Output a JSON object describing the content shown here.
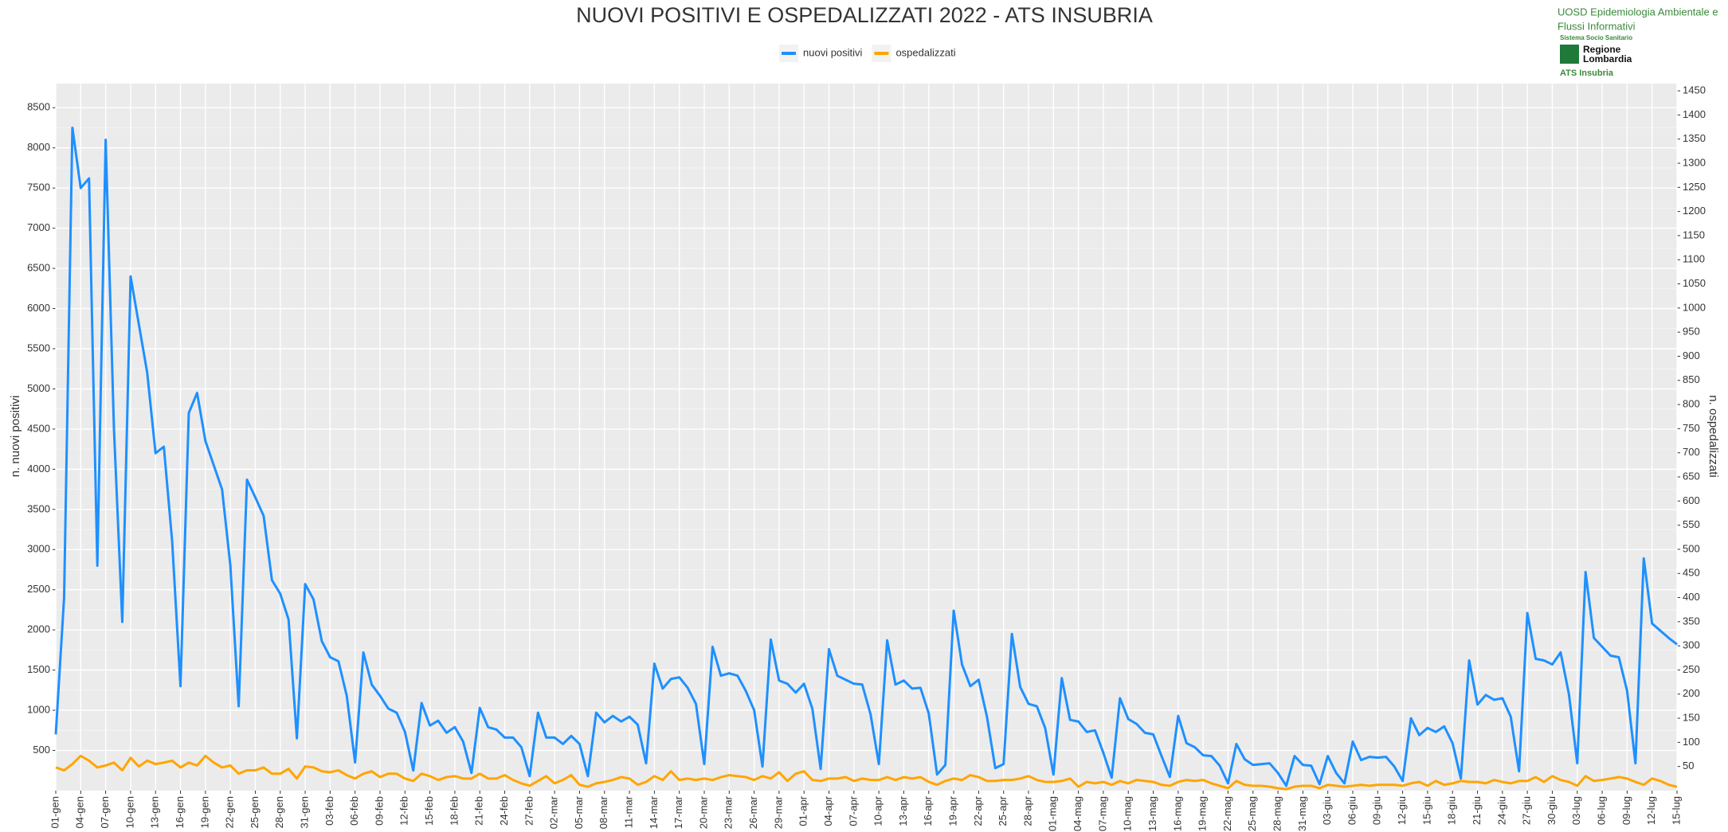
{
  "chart_data": {
    "type": "line",
    "title": "NUOVI POSITIVI E OSPEDALIZZATI 2022 - ATS INSUBRIA",
    "y_label": "n. nuovi positivi",
    "y2_label": "n. ospedalizzati",
    "legend": "top",
    "grid": true,
    "categories": [
      "01-gen",
      null,
      null,
      "04-gen",
      null,
      null,
      "07-gen",
      null,
      null,
      "10-gen",
      null,
      null,
      "13-gen",
      null,
      null,
      "16-gen",
      null,
      null,
      "19-gen",
      null,
      null,
      "22-gen",
      null,
      null,
      "25-gen",
      null,
      null,
      "28-gen",
      null,
      null,
      "31-gen",
      null,
      null,
      "03-feb",
      null,
      null,
      "06-feb",
      null,
      null,
      "09-feb",
      null,
      null,
      "12-feb",
      null,
      null,
      "15-feb",
      null,
      null,
      "18-feb",
      null,
      null,
      "21-feb",
      null,
      null,
      "24-feb",
      null,
      null,
      "27-feb",
      null,
      null,
      "02-mar",
      null,
      null,
      "05-mar",
      null,
      null,
      "08-mar",
      null,
      null,
      "11-mar",
      null,
      null,
      "14-mar",
      null,
      null,
      "17-mar",
      null,
      null,
      "20-mar",
      null,
      null,
      "23-mar",
      null,
      null,
      "26-mar",
      null,
      null,
      "29-mar",
      null,
      null,
      "01-apr",
      null,
      null,
      "04-apr",
      null,
      null,
      "07-apr",
      null,
      null,
      "10-apr",
      null,
      null,
      "13-apr",
      null,
      null,
      "16-apr",
      null,
      null,
      "19-apr",
      null,
      null,
      "22-apr",
      null,
      null,
      "25-apr",
      null,
      null,
      "28-apr",
      null,
      null,
      "01-mag",
      null,
      null,
      "04-mag",
      null,
      null,
      "07-mag",
      null,
      null,
      "10-mag",
      null,
      null,
      "13-mag",
      null,
      null,
      "16-mag",
      null,
      null,
      "19-mag",
      null,
      null,
      "22-mag",
      null,
      null,
      "25-mag",
      null,
      null,
      "28-mag",
      null,
      null,
      "31-mag",
      null,
      null,
      "03-giu",
      null,
      null,
      "06-giu",
      null,
      null,
      "09-giu",
      null,
      null,
      "12-giu",
      null,
      null,
      "15-giu",
      null,
      null,
      "18-giu",
      null,
      null,
      "21-giu",
      null,
      null,
      "24-giu",
      null,
      null,
      "27-giu",
      null,
      null,
      "30-giu",
      null,
      null,
      "03-lug",
      null,
      null,
      "06-lug",
      null,
      null,
      "09-lug",
      null,
      null,
      "12-lug",
      null,
      null,
      "15-lug"
    ],
    "series": [
      {
        "name": "nuovi positivi",
        "color": "#1e90ff",
        "values": [
          700,
          2400,
          8250,
          7500,
          7620,
          2800,
          8100,
          4500,
          2100,
          6400,
          5800,
          5200,
          4200,
          4280,
          3100,
          1300,
          4700,
          4950,
          4350,
          4050,
          3750,
          2800,
          1050,
          3870,
          3650,
          3420,
          2620,
          2450,
          2130,
          650,
          2570,
          2380,
          1860,
          1660,
          1610,
          1180,
          350,
          1720,
          1320,
          1180,
          1020,
          970,
          730,
          250,
          1090,
          810,
          870,
          720,
          790,
          610,
          220,
          1030,
          790,
          760,
          660,
          660,
          540,
          180,
          970,
          660,
          660,
          580,
          680,
          580,
          180,
          970,
          850,
          930,
          860,
          920,
          820,
          340,
          1580,
          1270,
          1390,
          1410,
          1280,
          1080,
          330,
          1790,
          1430,
          1460,
          1430,
          1240,
          1000,
          300,
          1880,
          1370,
          1330,
          1220,
          1330,
          1020,
          270,
          1760,
          1430,
          1380,
          1330,
          1320,
          950,
          330,
          1870,
          1320,
          1370,
          1270,
          1280,
          960,
          200,
          320,
          2240,
          1570,
          1300,
          1380,
          920,
          280,
          330,
          1950,
          1290,
          1080,
          1050,
          780,
          200,
          1400,
          880,
          860,
          730,
          750,
          470,
          160,
          1150,
          890,
          830,
          720,
          700,
          430,
          170,
          930,
          590,
          540,
          440,
          430,
          310,
          90,
          580,
          390,
          320,
          330,
          340,
          220,
          60,
          430,
          320,
          310,
          80,
          430,
          220,
          90,
          610,
          380,
          420,
          410,
          420,
          300,
          120,
          900,
          690,
          780,
          730,
          800,
          590,
          150,
          1620,
          1070,
          1190,
          1130,
          1150,
          920,
          240,
          2210,
          1640,
          1620,
          1570,
          1720,
          1200,
          340,
          2720,
          1900,
          1790,
          1680,
          1660,
          1240,
          340,
          2890,
          2080,
          1990,
          1900,
          1820
        ]
      },
      {
        "name": "ospedalizzati",
        "color": "#ffa500",
        "axis": "y2",
        "values": [
          48,
          42,
          55,
          72,
          62,
          48,
          52,
          58,
          42,
          68,
          50,
          62,
          55,
          58,
          62,
          48,
          58,
          52,
          72,
          58,
          48,
          52,
          35,
          42,
          42,
          48,
          35,
          35,
          45,
          25,
          50,
          48,
          40,
          38,
          42,
          32,
          25,
          35,
          40,
          28,
          35,
          35,
          25,
          20,
          35,
          30,
          22,
          28,
          30,
          25,
          25,
          35,
          25,
          25,
          32,
          22,
          15,
          10,
          20,
          30,
          15,
          22,
          32,
          12,
          8,
          15,
          18,
          22,
          28,
          25,
          12,
          18,
          30,
          22,
          40,
          22,
          25,
          22,
          25,
          22,
          28,
          32,
          30,
          28,
          22,
          30,
          25,
          38,
          20,
          35,
          40,
          22,
          20,
          25,
          25,
          28,
          20,
          25,
          22,
          22,
          28,
          22,
          28,
          25,
          28,
          18,
          12,
          20,
          25,
          22,
          32,
          28,
          20,
          20,
          22,
          22,
          25,
          30,
          22,
          18,
          18,
          20,
          25,
          8,
          18,
          15,
          18,
          12,
          20,
          15,
          22,
          20,
          18,
          12,
          10,
          18,
          22,
          20,
          22,
          15,
          10,
          5,
          20,
          12,
          10,
          10,
          8,
          5,
          3,
          8,
          10,
          10,
          5,
          12,
          10,
          8,
          10,
          12,
          10,
          12,
          12,
          12,
          10,
          15,
          18,
          10,
          20,
          12,
          15,
          20,
          18,
          18,
          15,
          22,
          18,
          15,
          20,
          20,
          28,
          18,
          30,
          22,
          18,
          10,
          30,
          20,
          22,
          25,
          28,
          25,
          18,
          12,
          25,
          20,
          12,
          8
        ]
      }
    ],
    "ylim": [
      0,
      8800
    ],
    "yticks": [
      500,
      1000,
      1500,
      2000,
      2500,
      3000,
      3500,
      4000,
      4500,
      5000,
      5500,
      6000,
      6500,
      7000,
      7500,
      8000,
      8500
    ],
    "y2lim": [
      0,
      1465
    ],
    "y2ticks": [
      50,
      100,
      150,
      200,
      250,
      300,
      350,
      400,
      450,
      500,
      550,
      600,
      650,
      700,
      750,
      800,
      850,
      900,
      950,
      1000,
      1050,
      1100,
      1150,
      1200,
      1250,
      1300,
      1350,
      1400,
      1450
    ]
  },
  "logo": {
    "line1": "UOSD Epidemiologia Ambientale e",
    "line2": "Flussi Informativi",
    "line3": "Sistema Socio Sanitario",
    "line4": "Regione",
    "line5": "Lombardia",
    "line6": "ATS Insubria"
  }
}
